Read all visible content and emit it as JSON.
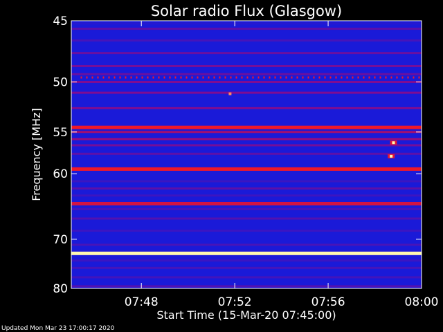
{
  "chart_data": {
    "type": "heatmap",
    "title": "Solar radio Flux (Glasgow)",
    "xlabel": "Start Time (15-Mar-20 07:45:00)",
    "ylabel": "Frequency [MHz]",
    "x_tick_labels": [
      "07:48",
      "07:52",
      "07:56",
      "08:00"
    ],
    "x_ticks_minutes_after_start": [
      3,
      7,
      11,
      15
    ],
    "xlim_minutes_after_start": [
      0,
      15
    ],
    "y_tick_values": [
      45,
      50,
      55,
      60,
      70,
      80
    ],
    "ylim_mhz": [
      80,
      45
    ],
    "y_scale": "reciprocal",
    "colors": {
      "background": "#000000",
      "low": "#1a1ad8",
      "mid": "#8a0a8a",
      "high": "#ff1a1a",
      "max": "#fff8b0"
    },
    "bands": [
      {
        "freq_mhz": 45.2,
        "level": 0.05
      },
      {
        "freq_mhz": 45.6,
        "level": 0.3
      },
      {
        "freq_mhz": 46.5,
        "level": 0.2
      },
      {
        "freq_mhz": 47.5,
        "level": 0.35
      },
      {
        "freq_mhz": 48.6,
        "level": 0.4
      },
      {
        "freq_mhz": 49.3,
        "level": 0.35
      },
      {
        "freq_mhz": 50.0,
        "level": 0.45
      },
      {
        "freq_mhz": 51.0,
        "level": 0.45
      },
      {
        "freq_mhz": 52.5,
        "level": 0.45
      },
      {
        "freq_mhz": 54.5,
        "level": 0.85
      },
      {
        "freq_mhz": 55.0,
        "level": 0.6
      },
      {
        "freq_mhz": 55.8,
        "level": 0.55
      },
      {
        "freq_mhz": 56.5,
        "level": 0.4
      },
      {
        "freq_mhz": 57.5,
        "level": 0.3
      },
      {
        "freq_mhz": 59.4,
        "level": 0.85
      },
      {
        "freq_mhz": 61.0,
        "level": 0.15
      },
      {
        "freq_mhz": 62.0,
        "level": 0.3
      },
      {
        "freq_mhz": 63.0,
        "level": 0.15
      },
      {
        "freq_mhz": 64.2,
        "level": 0.75
      },
      {
        "freq_mhz": 65.0,
        "level": 0.2
      },
      {
        "freq_mhz": 66.5,
        "level": 0.25
      },
      {
        "freq_mhz": 68.5,
        "level": 0.15
      },
      {
        "freq_mhz": 71.0,
        "level": 0.2
      },
      {
        "freq_mhz": 72.6,
        "level": 1.0
      },
      {
        "freq_mhz": 74.0,
        "level": 0.15
      },
      {
        "freq_mhz": 75.5,
        "level": 0.2
      },
      {
        "freq_mhz": 77.5,
        "level": 0.18
      },
      {
        "freq_mhz": 79.5,
        "level": 0.25
      }
    ],
    "features": [
      {
        "type": "dotted-line",
        "freq_mhz": 49.6,
        "t_start_min": 0.4,
        "t_end_min": 15,
        "level": 0.85
      },
      {
        "type": "spot",
        "freq_mhz": 51.1,
        "t_min": 6.8,
        "level": 0.95
      },
      {
        "type": "burst",
        "freq_mhz": 56.2,
        "t_min": 13.8,
        "level": 0.95
      },
      {
        "type": "burst",
        "freq_mhz": 57.8,
        "t_min": 13.7,
        "level": 0.95
      }
    ]
  },
  "footer": {
    "updated": "Updated Mon Mar 23 17:00:17 2020"
  }
}
